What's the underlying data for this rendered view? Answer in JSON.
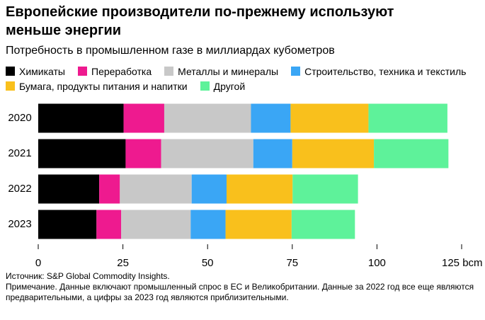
{
  "chart_data": {
    "type": "bar",
    "orientation": "horizontal",
    "stacked": true,
    "title": "Европейские производители по-прежнему используют меньше энергии",
    "subtitle": "Потребность в промышленном газе в миллиардах кубометров",
    "categories": [
      "2020",
      "2021",
      "2022",
      "2023"
    ],
    "series": [
      {
        "name": "Химикаты",
        "color": "#000000",
        "values": [
          25.2,
          25.8,
          18,
          17.2
        ]
      },
      {
        "name": "Переработка",
        "color": "#ee1a8f",
        "values": [
          12,
          10.5,
          6.1,
          7.3
        ]
      },
      {
        "name": "Металлы и минералы",
        "color": "#c8c8c8",
        "values": [
          25.6,
          27.2,
          21.2,
          20.5
        ]
      },
      {
        "name": "Строительство, техника и текстиль",
        "color": "#3aa6f5",
        "values": [
          11.7,
          11.5,
          10.3,
          10.3
        ]
      },
      {
        "name": "Бумага, продукты питания и напитки",
        "color": "#f9c01c",
        "values": [
          23,
          24.1,
          19.5,
          19.5
        ]
      },
      {
        "name": "Другой",
        "color": "#5ef29a",
        "values": [
          23.3,
          22,
          19.3,
          18.7
        ]
      }
    ],
    "xlim": [
      0,
      125
    ],
    "xticks": [
      0,
      25,
      50,
      75,
      100,
      {
        "value": 125,
        "label": "125 bcm"
      }
    ],
    "source": "Источник: S&P Global Commodity Insights.",
    "note": "Примечание. Данные включают промышленный спрос в ЕС и Великобритании. Данные за 2022 год все еще являются предварительными, а цифры за 2023 год являются приблизительными."
  }
}
